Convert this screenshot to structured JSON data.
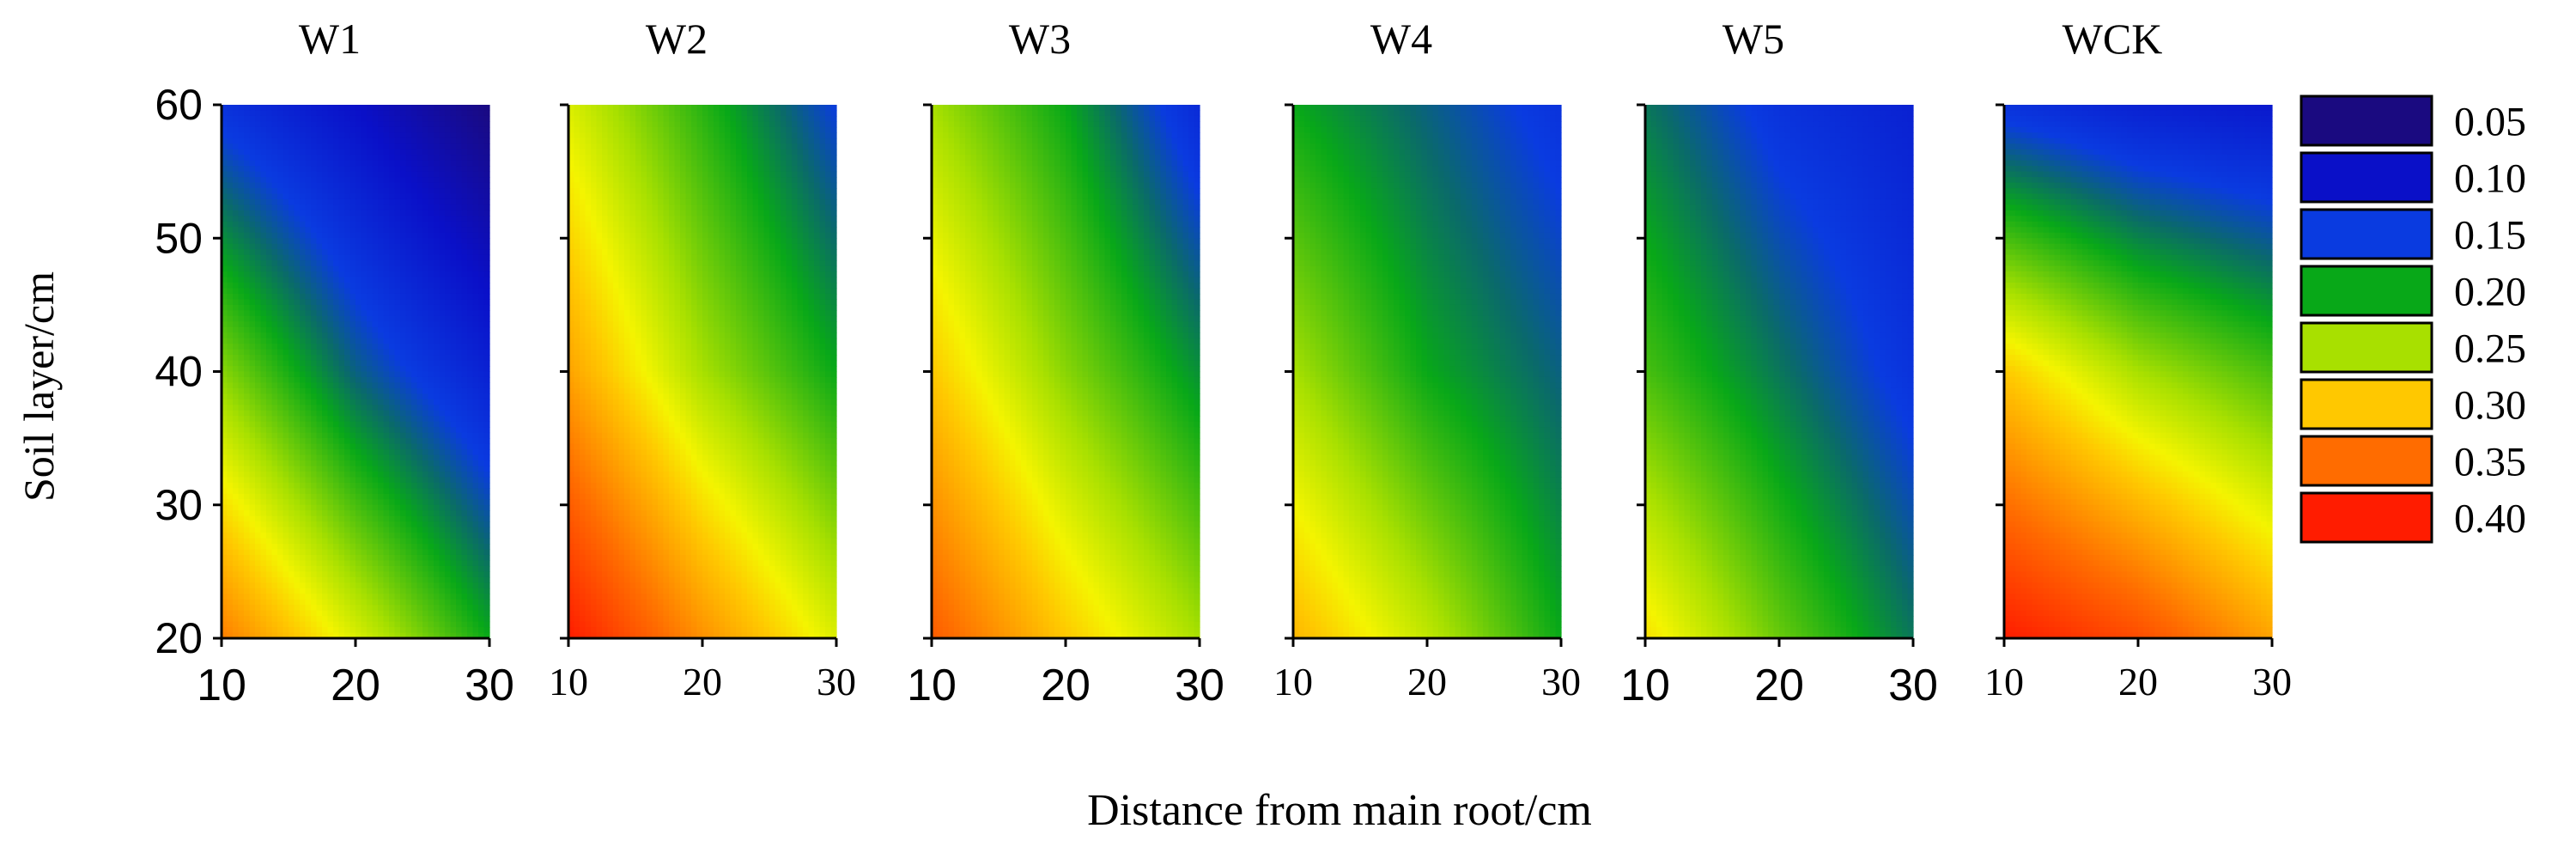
{
  "chart_data": {
    "type": "heatmap",
    "xlabel": "Distance from main root/cm",
    "ylabel": "Soil layer/cm",
    "x": [
      10,
      20,
      30
    ],
    "y": [
      20,
      40,
      60
    ],
    "xlim": [
      10,
      30
    ],
    "ylim": [
      20,
      60
    ],
    "x_ticks": [
      "10",
      "20",
      "30"
    ],
    "y_ticks": [
      "20",
      "30",
      "40",
      "50",
      "60"
    ],
    "legend": {
      "position": "right",
      "levels": [
        "0.05",
        "0.10",
        "0.15",
        "0.20",
        "0.25",
        "0.30",
        "0.35",
        "0.40"
      ],
      "colors": [
        "#1a0a80",
        "#0a10c8",
        "#0a3be0",
        "#08a818",
        "#a8e000",
        "#ffc800",
        "#ff6c00",
        "#ff1c00"
      ]
    },
    "palette": {
      "stops": [
        0.05,
        0.1,
        0.15,
        0.175,
        0.2,
        0.25,
        0.28,
        0.3,
        0.35,
        0.4
      ],
      "colors": [
        "#1a0a80",
        "#0a10c8",
        "#0a3be0",
        "#0a6a6a",
        "#08a818",
        "#a8e000",
        "#f4f400",
        "#ffc800",
        "#ff6c00",
        "#ff1c00"
      ]
    },
    "panels": [
      {
        "title": "W1",
        "tick_font": "sans",
        "values": [
          [
            0.34,
            0.27,
            0.2
          ],
          [
            0.24,
            0.17,
            0.12
          ],
          [
            0.14,
            0.1,
            0.05
          ]
        ]
      },
      {
        "title": "W2",
        "tick_font": "serif",
        "values": [
          [
            0.4,
            0.33,
            0.27
          ],
          [
            0.32,
            0.25,
            0.2
          ],
          [
            0.27,
            0.21,
            0.15
          ]
        ]
      },
      {
        "title": "W3",
        "tick_font": "sans",
        "values": [
          [
            0.36,
            0.3,
            0.25
          ],
          [
            0.3,
            0.24,
            0.19
          ],
          [
            0.25,
            0.2,
            0.13
          ]
        ]
      },
      {
        "title": "W4",
        "tick_font": "serif",
        "values": [
          [
            0.31,
            0.26,
            0.2
          ],
          [
            0.25,
            0.2,
            0.17
          ],
          [
            0.2,
            0.17,
            0.14
          ]
        ]
      },
      {
        "title": "W5",
        "tick_font": "sans",
        "values": [
          [
            0.29,
            0.23,
            0.18
          ],
          [
            0.22,
            0.18,
            0.14
          ],
          [
            0.18,
            0.14,
            0.12
          ]
        ]
      },
      {
        "title": "WCK",
        "tick_font": "serif",
        "values": [
          [
            0.4,
            0.37,
            0.32
          ],
          [
            0.3,
            0.25,
            0.22
          ],
          [
            0.14,
            0.12,
            0.11
          ]
        ]
      }
    ]
  }
}
